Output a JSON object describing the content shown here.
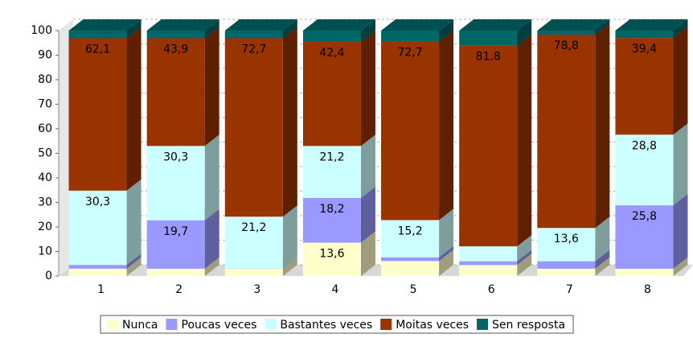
{
  "chart_data": {
    "type": "bar3d_stacked",
    "categories": [
      "1",
      "2",
      "3",
      "4",
      "5",
      "6",
      "7",
      "8"
    ],
    "ylim": [
      0,
      100
    ],
    "yticks": [
      0,
      10,
      20,
      30,
      40,
      50,
      60,
      70,
      80,
      90,
      100
    ],
    "grid": true,
    "legend": "bottom",
    "series": [
      {
        "name": "Nunca",
        "color": "#ffffcc",
        "values": [
          3.0,
          3.0,
          3.0,
          13.6,
          6.1,
          4.5,
          3.0,
          3.0
        ],
        "value_labels": [
          null,
          null,
          null,
          "13,6",
          null,
          null,
          null,
          null
        ]
      },
      {
        "name": "Poucas veces",
        "color": "#9999ff",
        "values": [
          1.5,
          19.7,
          0,
          18.2,
          1.5,
          1.5,
          3.0,
          25.8
        ],
        "value_labels": [
          null,
          "19,7",
          null,
          "18,2",
          null,
          null,
          null,
          "25,8"
        ]
      },
      {
        "name": "Bastantes veces",
        "color": "#ccffff",
        "values": [
          30.3,
          30.3,
          21.2,
          21.2,
          15.2,
          6.1,
          13.6,
          28.8
        ],
        "value_labels": [
          "30,3",
          "30,3",
          "21,2",
          "21,2",
          "15,2",
          null,
          "13,6",
          "28,8"
        ]
      },
      {
        "name": "Moitas veces",
        "color": "#993300",
        "values": [
          62.1,
          43.9,
          72.7,
          42.4,
          72.7,
          81.8,
          78.8,
          39.4
        ],
        "value_labels": [
          "62,1",
          "43,9",
          "72,7",
          "42,4",
          "72,7",
          "81,8",
          "78,8",
          "39,4"
        ]
      },
      {
        "name": "Sen resposta",
        "color": "#006666",
        "values": [
          3.1,
          3.1,
          3.1,
          4.6,
          4.5,
          6.1,
          1.6,
          3.0
        ],
        "value_labels": [
          null,
          null,
          null,
          null,
          null,
          null,
          null,
          null
        ]
      }
    ]
  }
}
